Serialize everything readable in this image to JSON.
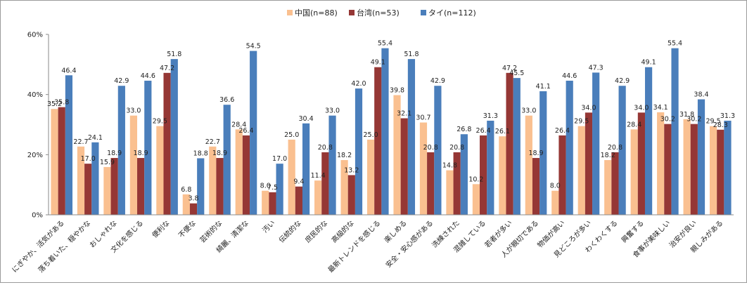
{
  "chart_data": {
    "type": "bar",
    "title": "",
    "xlabel": "",
    "ylabel": "",
    "ylim": [
      0,
      60
    ],
    "y_ticks": [
      "0%",
      "20%",
      "40%",
      "60%"
    ],
    "grid": false,
    "legend_position": "top-center",
    "categories": [
      "にぎやか、活気がある",
      "落ち着いた、穏やかな",
      "おしゃれな",
      "文化を感じる",
      "便利な",
      "不便な",
      "芸術的な",
      "綺麗、清潔な",
      "汚い",
      "伝統的な",
      "庶民的な",
      "高級的な",
      "最新トレンドを感じる",
      "楽しめる",
      "安全・安心感がある",
      "洗練された",
      "混雑している",
      "若者が多い",
      "人が親切である",
      "物価が高い",
      "見どころが多い",
      "わくわくする",
      "興奮する",
      "食事が美味しい",
      "治安が良い",
      "親しみがある"
    ],
    "series": [
      {
        "name": "中国(n=88)",
        "color": "#fac090",
        "values": [
          35.2,
          22.7,
          15.9,
          33.0,
          29.5,
          6.8,
          22.7,
          28.4,
          8.0,
          25.0,
          11.4,
          18.2,
          25.0,
          39.8,
          30.7,
          14.8,
          10.2,
          26.1,
          33.0,
          8.0,
          29.5,
          18.2,
          28.4,
          34.1,
          31.8,
          29.5
        ]
      },
      {
        "name": "台湾(n=53)",
        "color": "#953735",
        "values": [
          35.8,
          17.0,
          18.9,
          18.9,
          47.2,
          3.8,
          18.9,
          26.4,
          7.5,
          9.4,
          20.8,
          13.2,
          49.1,
          32.1,
          20.8,
          20.8,
          26.4,
          47.2,
          18.9,
          26.4,
          34.0,
          20.8,
          34.0,
          30.2,
          30.2,
          28.3
        ]
      },
      {
        "name": "タイ(n=112)",
        "color": "#4a7ebb",
        "values": [
          46.4,
          24.1,
          42.9,
          44.6,
          51.8,
          18.8,
          36.6,
          54.5,
          17.0,
          30.4,
          33.0,
          42.0,
          55.4,
          51.8,
          42.9,
          26.8,
          31.3,
          45.5,
          41.1,
          44.6,
          47.3,
          42.9,
          49.1,
          55.4,
          38.4,
          31.3
        ]
      }
    ]
  }
}
